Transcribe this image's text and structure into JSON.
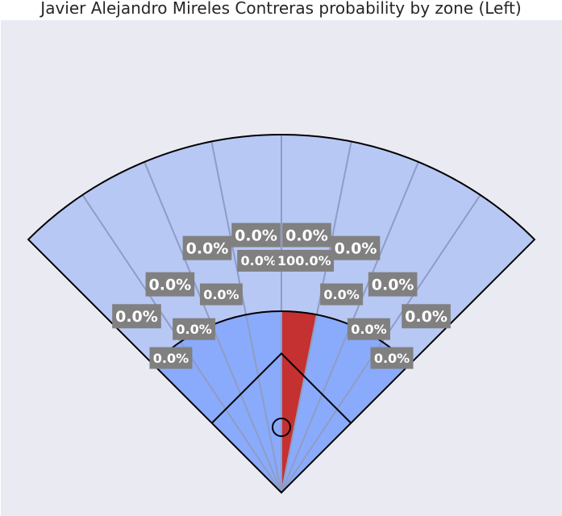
{
  "chart_data": {
    "type": "spray-chart",
    "title": "Javier Alejandro Mireles Contreras probability by zone (Left)",
    "outfield": {
      "values": [
        "0.0%",
        "0.0%",
        "0.0%",
        "0.0%",
        "0.0%",
        "0.0%",
        "0.0%",
        "0.0%"
      ],
      "probabilities": [
        0,
        0,
        0,
        0,
        0,
        0,
        0,
        0
      ]
    },
    "infield": {
      "values": [
        "0.0%",
        "0.0%",
        "0.0%",
        "0.0%",
        "100.0%",
        "0.0%",
        "0.0%",
        "0.0%"
      ],
      "probabilities": [
        0,
        0,
        0,
        0,
        1,
        0,
        0,
        0
      ]
    },
    "colors": {
      "background": "#eaeaf2",
      "outfield": "#b8c8f4",
      "infield": "#8aaafb",
      "hot": "#c53030",
      "label_box": "#808080",
      "divider": "#8e9dc4"
    }
  }
}
